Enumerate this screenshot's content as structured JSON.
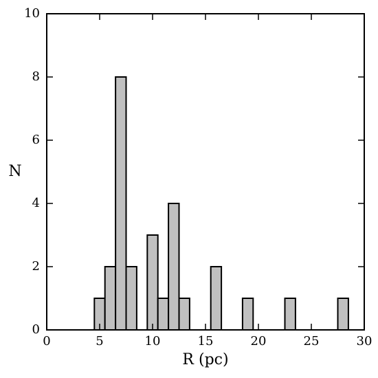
{
  "chart_data": {
    "type": "bar",
    "xlabel": "R (pc)",
    "ylabel": "N",
    "xlim": [
      0,
      30
    ],
    "ylim": [
      0,
      10
    ],
    "grid": false,
    "bin_width": 1,
    "x_ticks": [
      0,
      5,
      10,
      15,
      20,
      25,
      30
    ],
    "x_tick_labels": [
      "0",
      "5",
      "10",
      "15",
      "20",
      "25",
      "30"
    ],
    "y_ticks": [
      0,
      2,
      4,
      6,
      8,
      10
    ],
    "y_tick_labels": [
      "0",
      "2",
      "4",
      "6",
      "8",
      "10"
    ],
    "bars": [
      {
        "x": 5,
        "value": 1
      },
      {
        "x": 6,
        "value": 2
      },
      {
        "x": 7,
        "value": 8
      },
      {
        "x": 8,
        "value": 2
      },
      {
        "x": 10,
        "value": 3
      },
      {
        "x": 11,
        "value": 1
      },
      {
        "x": 12,
        "value": 4
      },
      {
        "x": 13,
        "value": 1
      },
      {
        "x": 16,
        "value": 2
      },
      {
        "x": 19,
        "value": 1
      },
      {
        "x": 23,
        "value": 1
      },
      {
        "x": 28,
        "value": 1
      }
    ],
    "colors": {
      "bar_fill": "#c0c0c0",
      "bar_edge": "#000000"
    }
  }
}
